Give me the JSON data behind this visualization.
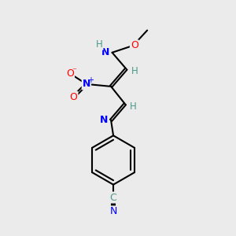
{
  "background_color": "#ebebeb",
  "bond_color": "#000000",
  "atom_colors": {
    "N": "#0000ff",
    "O": "#ff0000",
    "C": "#000000",
    "H": "#4a9a8a"
  },
  "figsize": [
    3.0,
    3.0
  ],
  "dpi": 100
}
